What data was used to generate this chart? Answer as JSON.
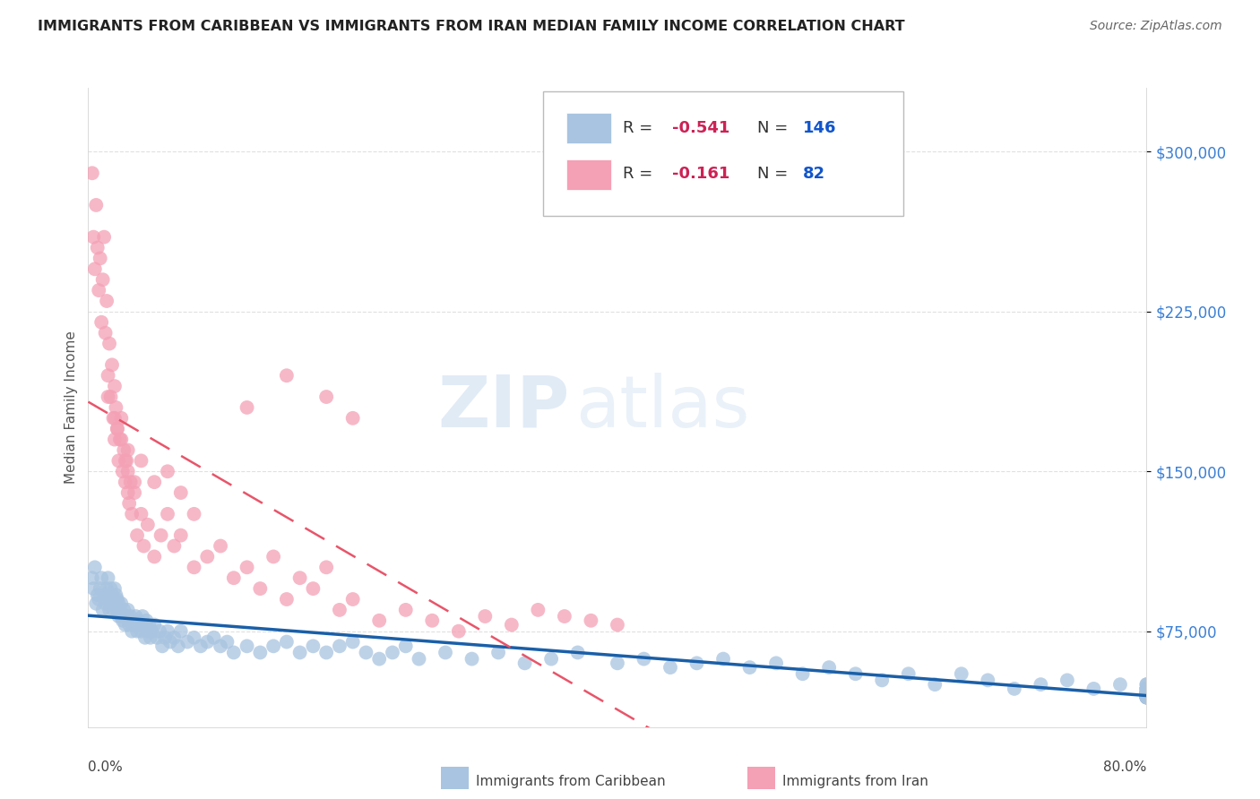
{
  "title": "IMMIGRANTS FROM CARIBBEAN VS IMMIGRANTS FROM IRAN MEDIAN FAMILY INCOME CORRELATION CHART",
  "source": "Source: ZipAtlas.com",
  "ylabel": "Median Family Income",
  "watermark_zip": "ZIP",
  "watermark_atlas": "atlas",
  "caribbean_R": -0.541,
  "caribbean_N": 146,
  "iran_R": -0.161,
  "iran_N": 82,
  "caribbean_color": "#a8c4e0",
  "iran_color": "#f4a0b5",
  "caribbean_line_color": "#1a5fa8",
  "iran_line_color": "#e8556a",
  "ytick_vals": [
    75000,
    150000,
    225000,
    300000
  ],
  "ytick_labels": [
    "$75,000",
    "$150,000",
    "$225,000",
    "$300,000"
  ],
  "xmin": 0.0,
  "xmax": 80.0,
  "ymin": 30000,
  "ymax": 330000,
  "background_color": "#ffffff",
  "grid_color": "#cccccc",
  "title_color": "#222222",
  "axis_label_color": "#3a7fd5",
  "legend_R_color": "#cc2255",
  "legend_N_color": "#1155cc",
  "caribbean_x": [
    0.3,
    0.4,
    0.5,
    0.6,
    0.7,
    0.8,
    0.9,
    1.0,
    1.1,
    1.2,
    1.3,
    1.4,
    1.5,
    1.5,
    1.6,
    1.7,
    1.8,
    1.8,
    1.9,
    2.0,
    2.0,
    2.1,
    2.1,
    2.2,
    2.2,
    2.3,
    2.3,
    2.4,
    2.5,
    2.5,
    2.6,
    2.7,
    2.8,
    2.9,
    3.0,
    3.0,
    3.1,
    3.2,
    3.3,
    3.4,
    3.5,
    3.6,
    3.7,
    3.8,
    3.9,
    4.0,
    4.1,
    4.2,
    4.3,
    4.4,
    4.5,
    4.6,
    4.7,
    4.8,
    5.0,
    5.2,
    5.4,
    5.6,
    5.8,
    6.0,
    6.2,
    6.5,
    6.8,
    7.0,
    7.5,
    8.0,
    8.5,
    9.0,
    9.5,
    10.0,
    10.5,
    11.0,
    12.0,
    13.0,
    14.0,
    15.0,
    16.0,
    17.0,
    18.0,
    19.0,
    20.0,
    21.0,
    22.0,
    23.0,
    24.0,
    25.0,
    27.0,
    29.0,
    31.0,
    33.0,
    35.0,
    37.0,
    40.0,
    42.0,
    44.0,
    46.0,
    48.0,
    50.0,
    52.0,
    54.0,
    56.0,
    58.0,
    60.0,
    62.0,
    64.0,
    66.0,
    68.0,
    70.0,
    72.0,
    74.0,
    76.0,
    78.0,
    80.0,
    80.0,
    80.0,
    80.0,
    80.0,
    80.0,
    80.0,
    80.0,
    80.0,
    80.0,
    80.0,
    80.0,
    80.0,
    80.0,
    80.0,
    80.0,
    80.0,
    80.0,
    80.0,
    80.0,
    80.0,
    80.0,
    80.0,
    80.0,
    80.0,
    80.0,
    80.0,
    80.0,
    80.0,
    80.0,
    80.0,
    80.0,
    80.0,
    80.0
  ],
  "caribbean_y": [
    100000,
    95000,
    105000,
    88000,
    92000,
    90000,
    95000,
    100000,
    85000,
    92000,
    88000,
    95000,
    90000,
    100000,
    85000,
    95000,
    88000,
    92000,
    85000,
    90000,
    95000,
    88000,
    92000,
    85000,
    90000,
    82000,
    88000,
    85000,
    82000,
    88000,
    80000,
    85000,
    78000,
    82000,
    80000,
    85000,
    78000,
    82000,
    75000,
    80000,
    78000,
    82000,
    75000,
    80000,
    78000,
    75000,
    82000,
    78000,
    72000,
    80000,
    75000,
    78000,
    72000,
    75000,
    78000,
    72000,
    75000,
    68000,
    72000,
    75000,
    70000,
    72000,
    68000,
    75000,
    70000,
    72000,
    68000,
    70000,
    72000,
    68000,
    70000,
    65000,
    68000,
    65000,
    68000,
    70000,
    65000,
    68000,
    65000,
    68000,
    70000,
    65000,
    62000,
    65000,
    68000,
    62000,
    65000,
    62000,
    65000,
    60000,
    62000,
    65000,
    60000,
    62000,
    58000,
    60000,
    62000,
    58000,
    60000,
    55000,
    58000,
    55000,
    52000,
    55000,
    50000,
    55000,
    52000,
    48000,
    50000,
    52000,
    48000,
    50000,
    48000,
    46000,
    50000,
    48000,
    46000,
    50000,
    48000,
    45000,
    46000,
    48000,
    45000,
    46000,
    48000,
    45000,
    44000,
    46000,
    44000,
    46000,
    45000,
    44000,
    46000,
    45000,
    44000,
    46000,
    45000,
    44000,
    46000,
    44000,
    45000,
    44000,
    46000,
    45000,
    44000,
    46000
  ],
  "iran_x": [
    0.3,
    0.4,
    0.5,
    0.6,
    0.7,
    0.8,
    0.9,
    1.0,
    1.1,
    1.2,
    1.3,
    1.4,
    1.5,
    1.6,
    1.7,
    1.8,
    1.9,
    2.0,
    2.0,
    2.1,
    2.2,
    2.3,
    2.4,
    2.5,
    2.6,
    2.7,
    2.8,
    2.9,
    3.0,
    3.0,
    3.1,
    3.2,
    3.3,
    3.5,
    3.7,
    4.0,
    4.2,
    4.5,
    5.0,
    5.5,
    6.0,
    6.5,
    7.0,
    8.0,
    9.0,
    10.0,
    11.0,
    12.0,
    13.0,
    14.0,
    15.0,
    16.0,
    17.0,
    18.0,
    19.0,
    20.0,
    22.0,
    24.0,
    26.0,
    28.0,
    30.0,
    32.0,
    34.0,
    36.0,
    38.0,
    40.0,
    12.0,
    15.0,
    18.0,
    20.0,
    7.0,
    8.0,
    5.0,
    6.0,
    3.0,
    4.0,
    2.0,
    2.5,
    1.5,
    2.2,
    2.8,
    3.5
  ],
  "iran_y": [
    290000,
    260000,
    245000,
    275000,
    255000,
    235000,
    250000,
    220000,
    240000,
    260000,
    215000,
    230000,
    195000,
    210000,
    185000,
    200000,
    175000,
    190000,
    165000,
    180000,
    170000,
    155000,
    165000,
    175000,
    150000,
    160000,
    145000,
    155000,
    140000,
    150000,
    135000,
    145000,
    130000,
    140000,
    120000,
    130000,
    115000,
    125000,
    110000,
    120000,
    130000,
    115000,
    120000,
    105000,
    110000,
    115000,
    100000,
    105000,
    95000,
    110000,
    90000,
    100000,
    95000,
    105000,
    85000,
    90000,
    80000,
    85000,
    80000,
    75000,
    82000,
    78000,
    85000,
    82000,
    80000,
    78000,
    180000,
    195000,
    185000,
    175000,
    140000,
    130000,
    145000,
    150000,
    160000,
    155000,
    175000,
    165000,
    185000,
    170000,
    155000,
    145000
  ]
}
